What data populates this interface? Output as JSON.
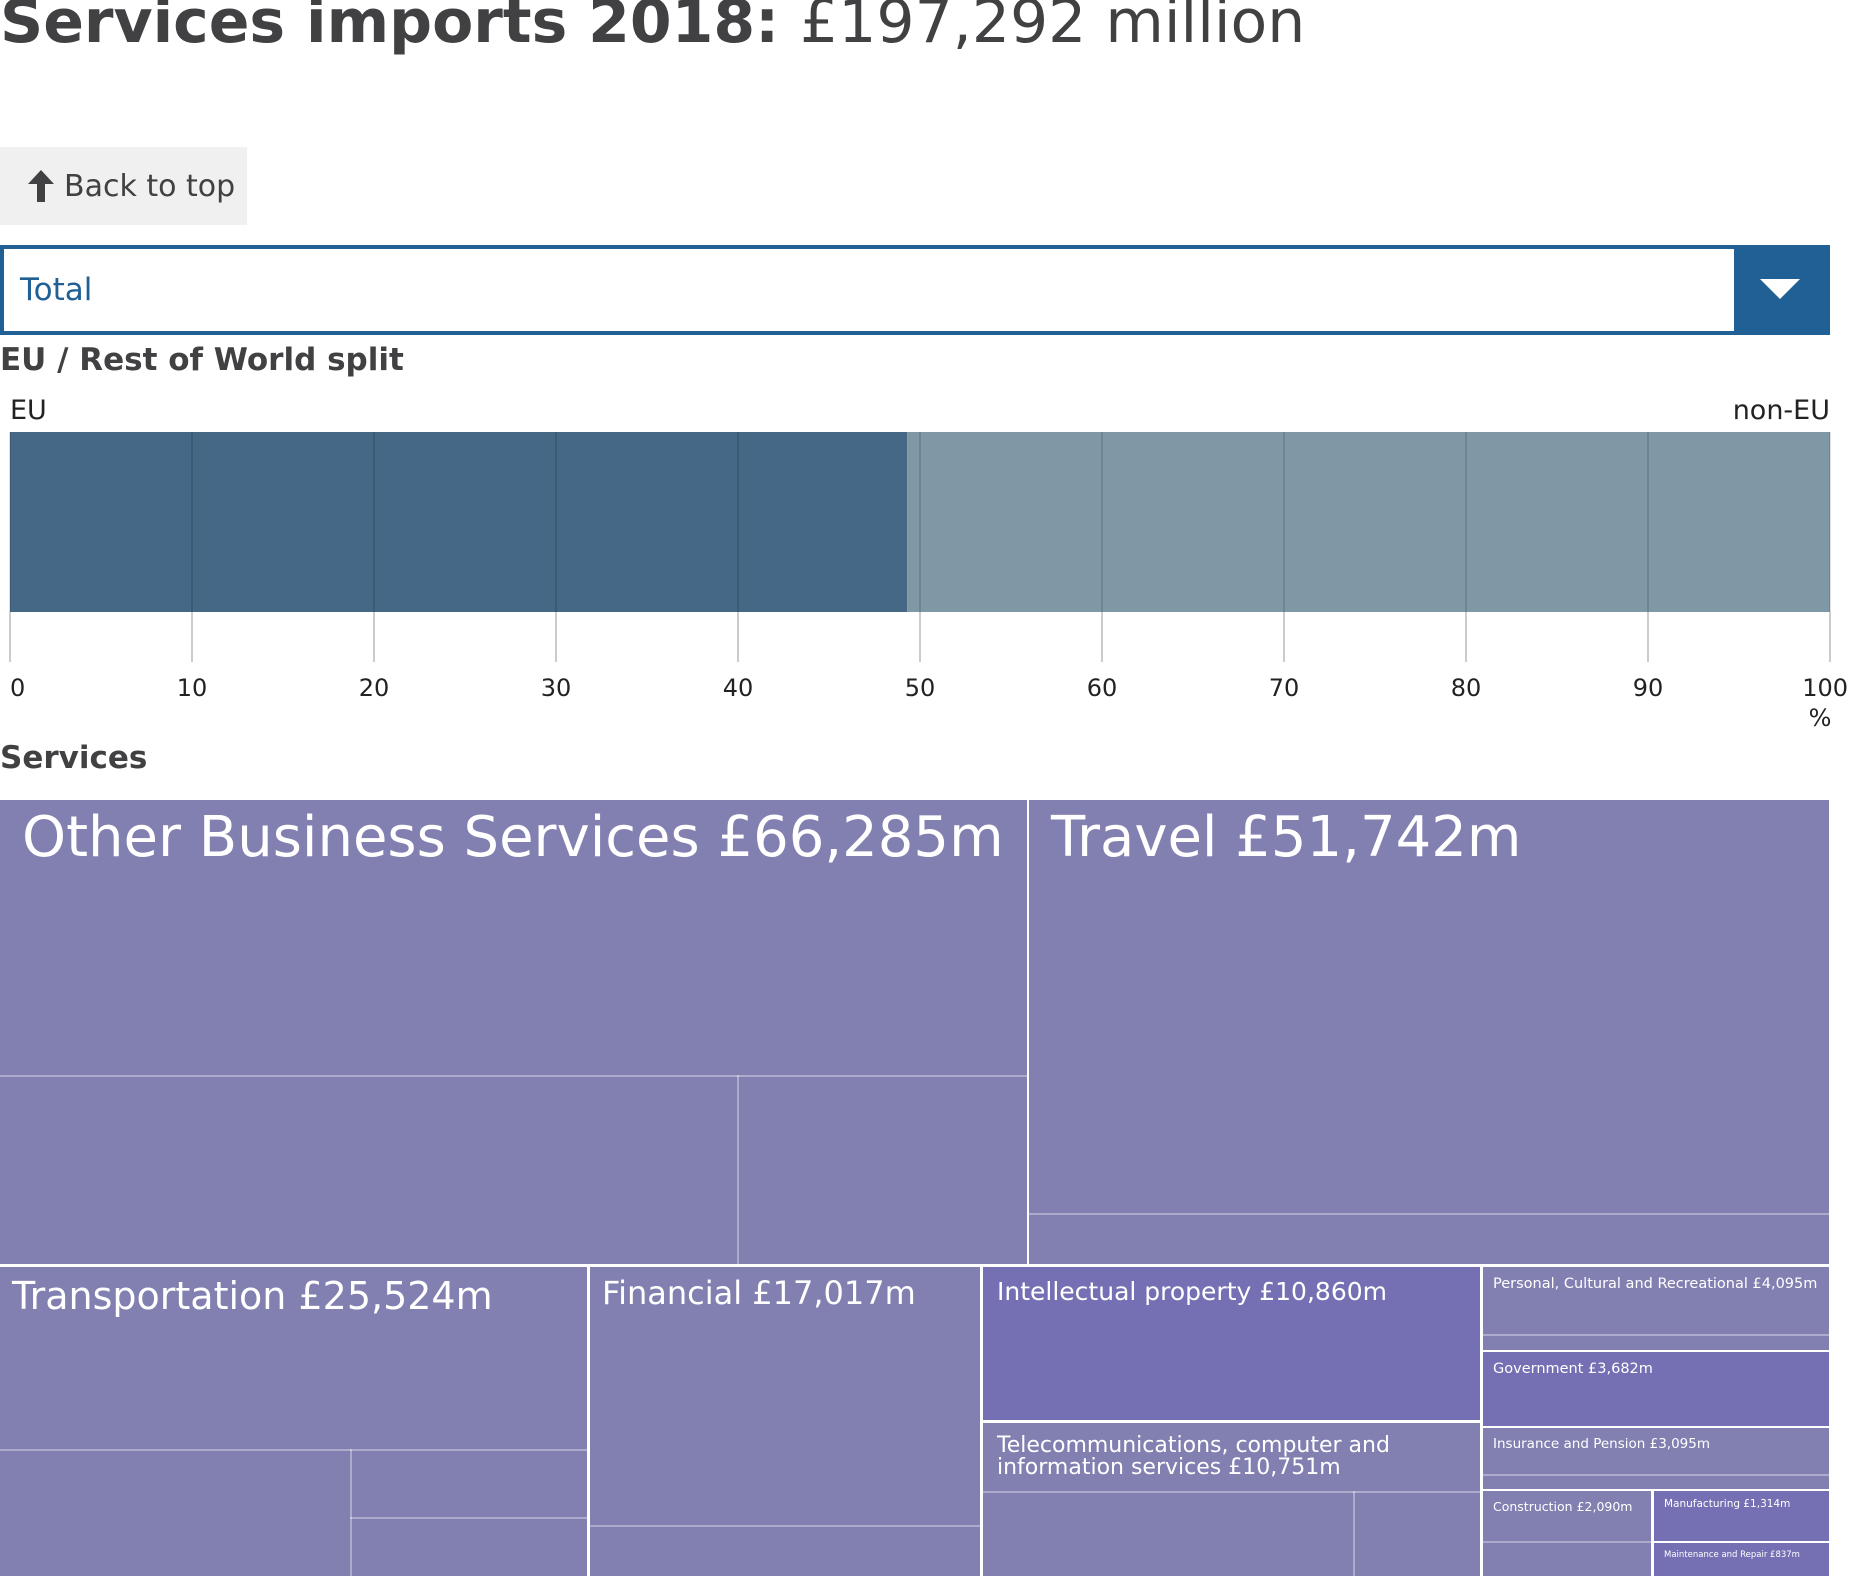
{
  "header": {
    "title_strong": "Services imports 2018:",
    "title_value": "£197,292 million"
  },
  "back_button": {
    "label": "Back to top"
  },
  "filter": {
    "selected": "Total"
  },
  "split_section": {
    "title": "EU / Rest of World split",
    "left_label": "EU",
    "right_label": "non-EU"
  },
  "services_section": {
    "title": "Services"
  },
  "colors": {
    "eu": "#446886",
    "non_eu": "#7f98a6",
    "treemap_default": "#827fb1",
    "treemap_highlight": "#7570b3",
    "accent": "#206095"
  },
  "chart_data": [
    {
      "type": "bar",
      "orientation": "horizontal-stacked",
      "series": [
        {
          "name": "EU",
          "values": [
            49.3
          ]
        },
        {
          "name": "non-EU",
          "values": [
            50.7
          ]
        }
      ],
      "xlim": [
        0,
        100
      ],
      "xticks": [
        "0",
        "10",
        "20",
        "30",
        "40",
        "50",
        "60",
        "70",
        "80",
        "90",
        "100"
      ],
      "xunit": "%"
    },
    {
      "type": "treemap",
      "items": [
        {
          "label": "Other Business Services £66,285m",
          "value": 66285
        },
        {
          "label": "Travel £51,742m",
          "value": 51742
        },
        {
          "label": "Transportation £25,524m",
          "value": 25524
        },
        {
          "label": "Financial £17,017m",
          "value": 17017
        },
        {
          "label": "Intellectual property £10,860m",
          "value": 10860
        },
        {
          "label": "Telecommunications, computer and information services £10,751m",
          "value": 10751
        },
        {
          "label": "Personal, Cultural and Recreational £4,095m",
          "value": 4095
        },
        {
          "label": "Government £3,682m",
          "value": 3682
        },
        {
          "label": "Insurance and Pension £3,095m",
          "value": 3095
        },
        {
          "label": "Construction £2,090m",
          "value": 2090
        },
        {
          "label": "Manufacturing £1,314m",
          "value": 1314
        },
        {
          "label": "Maintenance and Repair £837m",
          "value": 837
        }
      ]
    }
  ]
}
